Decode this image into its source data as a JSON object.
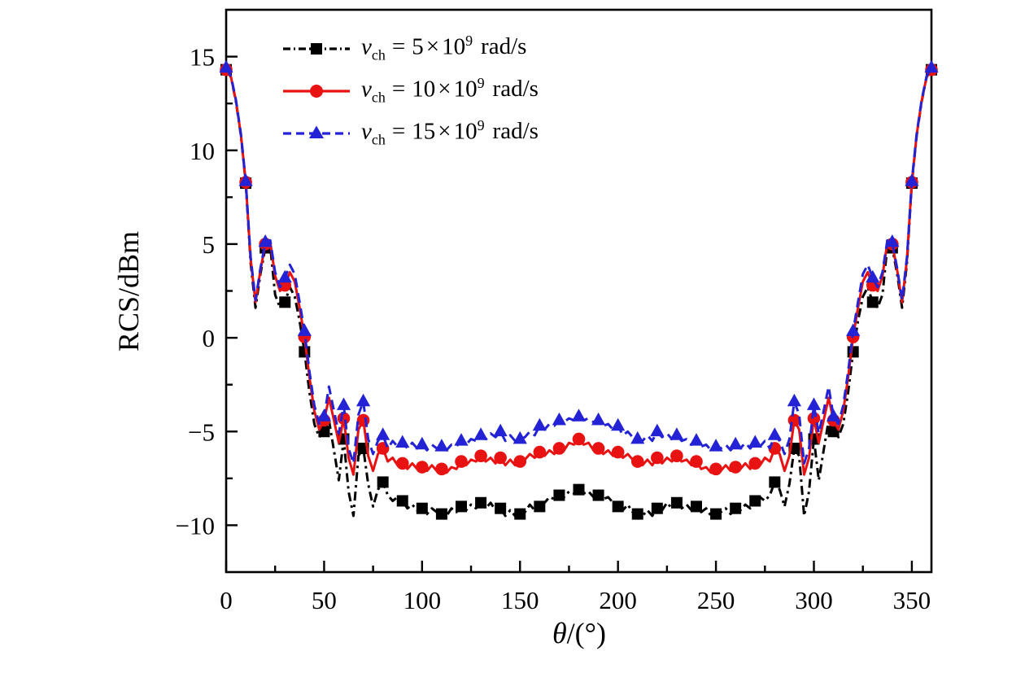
{
  "chart_data": {
    "type": "line",
    "title": "",
    "ylabel": "RCS/dBm",
    "xlabel": {
      "symbol": "θ",
      "rest": "/(°)"
    },
    "xlim": [
      0,
      360
    ],
    "ylim": [
      -12.5,
      17.5
    ],
    "x_major_ticks": [
      0,
      50,
      100,
      150,
      200,
      250,
      300,
      350
    ],
    "x_minor_step": 25,
    "y_major_ticks": [
      -10,
      -5,
      0,
      5,
      10,
      15
    ],
    "y_minor_step": 2.5,
    "grid": false,
    "frame": true,
    "background": "#ffffff",
    "axis_color": "#000000",
    "legend_position": "top-left-inside",
    "x_step_deg": 2.5,
    "marker_step_deg": 10,
    "symmetric_about_deg": 180,
    "series": [
      {
        "name": "v_ch = 5×10^9 rad/s",
        "legend": {
          "var": "v",
          "sub": "ch",
          "eq": "=",
          "coef": "5",
          "times": "×",
          "base": "10",
          "exp": "9",
          "unit": "rad/s"
        },
        "color": "#000000",
        "line_style": "dash-dot",
        "marker": "square",
        "values_half_0_to_180": [
          14.3,
          13.9,
          12.6,
          10.8,
          8.25,
          4.0,
          1.6,
          3.4,
          4.8,
          4.9,
          2.3,
          1.6,
          1.9,
          2.7,
          2.2,
          0.9,
          -0.75,
          -2.9,
          -4.6,
          -5.3,
          -5.0,
          -4.4,
          -6.0,
          -7.6,
          -5.4,
          -8.2,
          -9.5,
          -6.3,
          -5.9,
          -7.8,
          -9.0,
          -8.1,
          -7.7,
          -8.4,
          -8.7,
          -8.5,
          -8.7,
          -9.1,
          -8.9,
          -9.2,
          -9.1,
          -9.4,
          -9.1,
          -9.3,
          -9.4,
          -9.5,
          -9.1,
          -9.3,
          -9.0,
          -9.2,
          -8.9,
          -9.1,
          -8.8,
          -9.1,
          -8.8,
          -9.2,
          -9.1,
          -9.5,
          -9.2,
          -9.5,
          -9.4,
          -9.3,
          -8.9,
          -9.2,
          -9.0,
          -8.8,
          -8.5,
          -8.6,
          -8.4,
          -8.5,
          -8.2,
          -8.3,
          -8.1
        ]
      },
      {
        "name": "v_ch = 10×10^9 rad/s",
        "legend": {
          "var": "v",
          "sub": "ch",
          "eq": "=",
          "coef": "10",
          "times": "×",
          "base": "10",
          "exp": "9",
          "unit": "rad/s"
        },
        "color": "#e81212",
        "line_style": "solid",
        "marker": "circle",
        "values_half_0_to_180": [
          14.3,
          13.9,
          12.65,
          10.85,
          8.3,
          4.2,
          1.9,
          3.6,
          5.0,
          5.1,
          3.3,
          2.5,
          2.8,
          3.5,
          3.0,
          1.6,
          0.05,
          -2.1,
          -3.9,
          -4.9,
          -4.4,
          -3.2,
          -4.4,
          -5.6,
          -4.3,
          -6.4,
          -7.3,
          -4.9,
          -4.4,
          -6.3,
          -7.1,
          -6.2,
          -5.9,
          -6.6,
          -6.4,
          -6.8,
          -6.7,
          -7.0,
          -6.7,
          -7.0,
          -6.9,
          -7.1,
          -6.8,
          -7.1,
          -7.0,
          -7.2,
          -6.9,
          -7.0,
          -6.6,
          -6.8,
          -6.5,
          -6.6,
          -6.3,
          -6.6,
          -6.4,
          -6.7,
          -6.4,
          -6.8,
          -6.5,
          -6.8,
          -6.6,
          -6.5,
          -6.2,
          -6.4,
          -6.1,
          -6.3,
          -6.0,
          -6.2,
          -5.9,
          -6.0,
          -5.6,
          -5.7,
          -5.4
        ]
      },
      {
        "name": "v_ch = 15×10^9 rad/s",
        "legend": {
          "var": "v",
          "sub": "ch",
          "eq": "=",
          "coef": "15",
          "times": "×",
          "base": "10",
          "exp": "9",
          "unit": "rad/s"
        },
        "color": "#2323d5",
        "line_style": "dashed",
        "marker": "triangle",
        "values_half_0_to_180": [
          14.4,
          13.95,
          12.7,
          10.9,
          8.35,
          4.3,
          2.0,
          3.7,
          5.1,
          5.2,
          3.5,
          2.7,
          3.2,
          3.9,
          3.4,
          1.9,
          0.35,
          -1.8,
          -3.6,
          -4.6,
          -4.2,
          -2.6,
          -3.9,
          -5.1,
          -3.6,
          -5.9,
          -6.7,
          -4.1,
          -3.4,
          -5.4,
          -6.2,
          -5.5,
          -5.2,
          -5.9,
          -5.5,
          -5.8,
          -5.6,
          -5.9,
          -5.6,
          -5.9,
          -5.7,
          -6.0,
          -5.7,
          -5.9,
          -5.8,
          -6.0,
          -5.7,
          -5.8,
          -5.5,
          -5.7,
          -5.4,
          -5.5,
          -5.2,
          -5.4,
          -5.1,
          -5.3,
          -5.0,
          -5.5,
          -5.2,
          -5.5,
          -5.4,
          -5.3,
          -5.0,
          -5.2,
          -4.7,
          -4.9,
          -4.6,
          -4.7,
          -4.4,
          -4.5,
          -4.3,
          -4.4,
          -4.2
        ]
      }
    ]
  }
}
